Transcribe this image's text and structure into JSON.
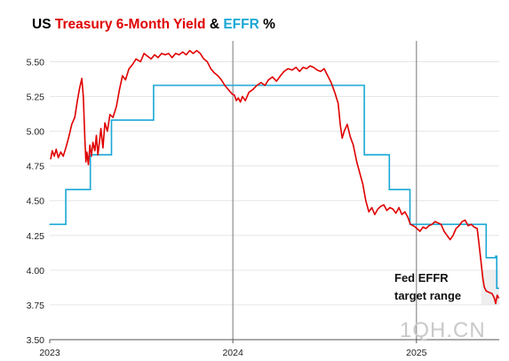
{
  "title_parts": [
    {
      "text": "US ",
      "color": "#000000"
    },
    {
      "text": "Treasury 6-Month Yield",
      "color": "#e00000"
    },
    {
      "text": " & ",
      "color": "#000000"
    },
    {
      "text": "EFFR",
      "color": "#1aa7d6"
    },
    {
      "text": " %",
      "color": "#000000"
    }
  ],
  "annotation": [
    "Fed EFFR",
    "target range"
  ],
  "watermark": "1QH.CN",
  "chart_data": {
    "type": "line",
    "xlim": [
      "2023-01-01",
      "2025-06-15"
    ],
    "ylim": [
      3.5,
      5.65
    ],
    "y_ticks": [
      3.5,
      3.75,
      4.0,
      4.25,
      4.5,
      4.75,
      5.0,
      5.25,
      5.5
    ],
    "y_tick_labels": [
      "3.50",
      "3.75",
      "4.00",
      "4.25",
      "4.50",
      "4.75",
      "5.00",
      "5.25",
      "5.50"
    ],
    "x_ticks": [
      "2023-01-01",
      "2024-01-01",
      "2025-01-01"
    ],
    "x_tick_labels": [
      "2023",
      "2024",
      "2025"
    ],
    "year_gridlines": [
      "2024-01-01",
      "2025-01-01"
    ],
    "horizontal_grid": true,
    "target_range_band": {
      "from": 3.75,
      "to": 4.0,
      "start": "2025-05-10",
      "color": "#eeeeee"
    },
    "series": [
      {
        "name": "Treasury 6-Month Yield",
        "color": "#e00000",
        "points": [
          [
            "2023-01-03",
            4.8
          ],
          [
            "2023-01-06",
            4.86
          ],
          [
            "2023-01-10",
            4.82
          ],
          [
            "2023-01-14",
            4.87
          ],
          [
            "2023-01-18",
            4.81
          ],
          [
            "2023-01-23",
            4.85
          ],
          [
            "2023-01-28",
            4.82
          ],
          [
            "2023-02-02",
            4.88
          ],
          [
            "2023-02-08",
            4.96
          ],
          [
            "2023-02-14",
            5.05
          ],
          [
            "2023-02-20",
            5.1
          ],
          [
            "2023-02-25",
            5.22
          ],
          [
            "2023-03-01",
            5.3
          ],
          [
            "2023-03-06",
            5.38
          ],
          [
            "2023-03-09",
            5.25
          ],
          [
            "2023-03-12",
            4.95
          ],
          [
            "2023-03-14",
            4.78
          ],
          [
            "2023-03-16",
            4.85
          ],
          [
            "2023-03-19",
            4.76
          ],
          [
            "2023-03-22",
            4.9
          ],
          [
            "2023-03-25",
            4.82
          ],
          [
            "2023-03-28",
            4.92
          ],
          [
            "2023-04-01",
            4.86
          ],
          [
            "2023-04-04",
            4.97
          ],
          [
            "2023-04-07",
            4.83
          ],
          [
            "2023-04-10",
            4.92
          ],
          [
            "2023-04-13",
            5.02
          ],
          [
            "2023-04-17",
            4.88
          ],
          [
            "2023-04-21",
            5.06
          ],
          [
            "2023-04-26",
            5.0
          ],
          [
            "2023-05-01",
            5.12
          ],
          [
            "2023-05-07",
            5.1
          ],
          [
            "2023-05-14",
            5.18
          ],
          [
            "2023-05-20",
            5.3
          ],
          [
            "2023-05-26",
            5.4
          ],
          [
            "2023-06-01",
            5.37
          ],
          [
            "2023-06-08",
            5.45
          ],
          [
            "2023-06-15",
            5.48
          ],
          [
            "2023-06-22",
            5.52
          ],
          [
            "2023-07-01",
            5.5
          ],
          [
            "2023-07-08",
            5.56
          ],
          [
            "2023-07-15",
            5.54
          ],
          [
            "2023-07-22",
            5.52
          ],
          [
            "2023-07-29",
            5.55
          ],
          [
            "2023-08-05",
            5.53
          ],
          [
            "2023-08-12",
            5.56
          ],
          [
            "2023-08-19",
            5.55
          ],
          [
            "2023-08-26",
            5.56
          ],
          [
            "2023-09-02",
            5.53
          ],
          [
            "2023-09-09",
            5.56
          ],
          [
            "2023-09-16",
            5.55
          ],
          [
            "2023-09-23",
            5.57
          ],
          [
            "2023-09-30",
            5.55
          ],
          [
            "2023-10-07",
            5.58
          ],
          [
            "2023-10-14",
            5.56
          ],
          [
            "2023-10-21",
            5.58
          ],
          [
            "2023-10-28",
            5.56
          ],
          [
            "2023-11-04",
            5.52
          ],
          [
            "2023-11-11",
            5.5
          ],
          [
            "2023-11-18",
            5.45
          ],
          [
            "2023-11-25",
            5.42
          ],
          [
            "2023-12-02",
            5.4
          ],
          [
            "2023-12-09",
            5.37
          ],
          [
            "2023-12-16",
            5.33
          ],
          [
            "2023-12-23",
            5.3
          ],
          [
            "2023-12-30",
            5.27
          ],
          [
            "2024-01-04",
            5.26
          ],
          [
            "2024-01-08",
            5.22
          ],
          [
            "2024-01-12",
            5.24
          ],
          [
            "2024-01-16",
            5.21
          ],
          [
            "2024-01-20",
            5.25
          ],
          [
            "2024-01-26",
            5.22
          ],
          [
            "2024-02-02",
            5.28
          ],
          [
            "2024-02-10",
            5.3
          ],
          [
            "2024-02-18",
            5.33
          ],
          [
            "2024-02-26",
            5.35
          ],
          [
            "2024-03-05",
            5.33
          ],
          [
            "2024-03-12",
            5.37
          ],
          [
            "2024-03-20",
            5.39
          ],
          [
            "2024-03-28",
            5.36
          ],
          [
            "2024-04-05",
            5.4
          ],
          [
            "2024-04-12",
            5.43
          ],
          [
            "2024-04-20",
            5.45
          ],
          [
            "2024-04-28",
            5.44
          ],
          [
            "2024-05-06",
            5.46
          ],
          [
            "2024-05-13",
            5.43
          ],
          [
            "2024-05-20",
            5.46
          ],
          [
            "2024-05-27",
            5.45
          ],
          [
            "2024-06-03",
            5.47
          ],
          [
            "2024-06-10",
            5.46
          ],
          [
            "2024-06-17",
            5.44
          ],
          [
            "2024-06-24",
            5.43
          ],
          [
            "2024-07-01",
            5.45
          ],
          [
            "2024-07-08",
            5.4
          ],
          [
            "2024-07-15",
            5.35
          ],
          [
            "2024-07-22",
            5.28
          ],
          [
            "2024-07-29",
            5.2
          ],
          [
            "2024-08-02",
            5.05
          ],
          [
            "2024-08-06",
            4.95
          ],
          [
            "2024-08-10",
            5.0
          ],
          [
            "2024-08-16",
            5.05
          ],
          [
            "2024-08-22",
            4.96
          ],
          [
            "2024-08-28",
            4.9
          ],
          [
            "2024-09-04",
            4.78
          ],
          [
            "2024-09-10",
            4.7
          ],
          [
            "2024-09-16",
            4.62
          ],
          [
            "2024-09-22",
            4.5
          ],
          [
            "2024-09-28",
            4.42
          ],
          [
            "2024-10-04",
            4.45
          ],
          [
            "2024-10-10",
            4.4
          ],
          [
            "2024-10-16",
            4.44
          ],
          [
            "2024-10-22",
            4.46
          ],
          [
            "2024-10-28",
            4.47
          ],
          [
            "2024-11-03",
            4.43
          ],
          [
            "2024-11-09",
            4.45
          ],
          [
            "2024-11-15",
            4.44
          ],
          [
            "2024-11-21",
            4.41
          ],
          [
            "2024-11-27",
            4.45
          ],
          [
            "2024-12-03",
            4.4
          ],
          [
            "2024-12-09",
            4.42
          ],
          [
            "2024-12-15",
            4.38
          ],
          [
            "2024-12-20",
            4.33
          ],
          [
            "2024-12-26",
            4.32
          ],
          [
            "2025-01-02",
            4.3
          ],
          [
            "2025-01-08",
            4.28
          ],
          [
            "2025-01-14",
            4.31
          ],
          [
            "2025-01-20",
            4.3
          ],
          [
            "2025-01-26",
            4.32
          ],
          [
            "2025-02-01",
            4.33
          ],
          [
            "2025-02-07",
            4.35
          ],
          [
            "2025-02-13",
            4.34
          ],
          [
            "2025-02-19",
            4.33
          ],
          [
            "2025-02-25",
            4.28
          ],
          [
            "2025-03-03",
            4.25
          ],
          [
            "2025-03-09",
            4.22
          ],
          [
            "2025-03-15",
            4.25
          ],
          [
            "2025-03-21",
            4.3
          ],
          [
            "2025-03-27",
            4.32
          ],
          [
            "2025-04-02",
            4.35
          ],
          [
            "2025-04-08",
            4.36
          ],
          [
            "2025-04-14",
            4.32
          ],
          [
            "2025-04-20",
            4.33
          ],
          [
            "2025-04-26",
            4.31
          ],
          [
            "2025-05-02",
            4.3
          ],
          [
            "2025-05-06",
            4.18
          ],
          [
            "2025-05-10",
            4.05
          ],
          [
            "2025-05-13",
            3.95
          ],
          [
            "2025-05-16",
            3.88
          ],
          [
            "2025-05-20",
            3.85
          ],
          [
            "2025-05-26",
            3.84
          ],
          [
            "2025-06-01",
            3.83
          ],
          [
            "2025-06-05",
            3.8
          ],
          [
            "2025-06-08",
            3.76
          ],
          [
            "2025-06-11",
            3.82
          ],
          [
            "2025-06-14",
            3.8
          ]
        ]
      },
      {
        "name": "EFFR",
        "color": "#1aa7d6",
        "step": "post",
        "points": [
          [
            "2023-01-01",
            4.33
          ],
          [
            "2023-02-02",
            4.58
          ],
          [
            "2023-03-23",
            4.83
          ],
          [
            "2023-05-04",
            5.08
          ],
          [
            "2023-07-27",
            5.33
          ],
          [
            "2024-09-19",
            4.83
          ],
          [
            "2024-11-08",
            4.58
          ],
          [
            "2024-12-19",
            4.33
          ],
          [
            "2025-05-20",
            4.09
          ],
          [
            "2025-06-08",
            4.1
          ],
          [
            "2025-06-10",
            3.87
          ],
          [
            "2025-06-14",
            3.87
          ]
        ]
      }
    ]
  }
}
